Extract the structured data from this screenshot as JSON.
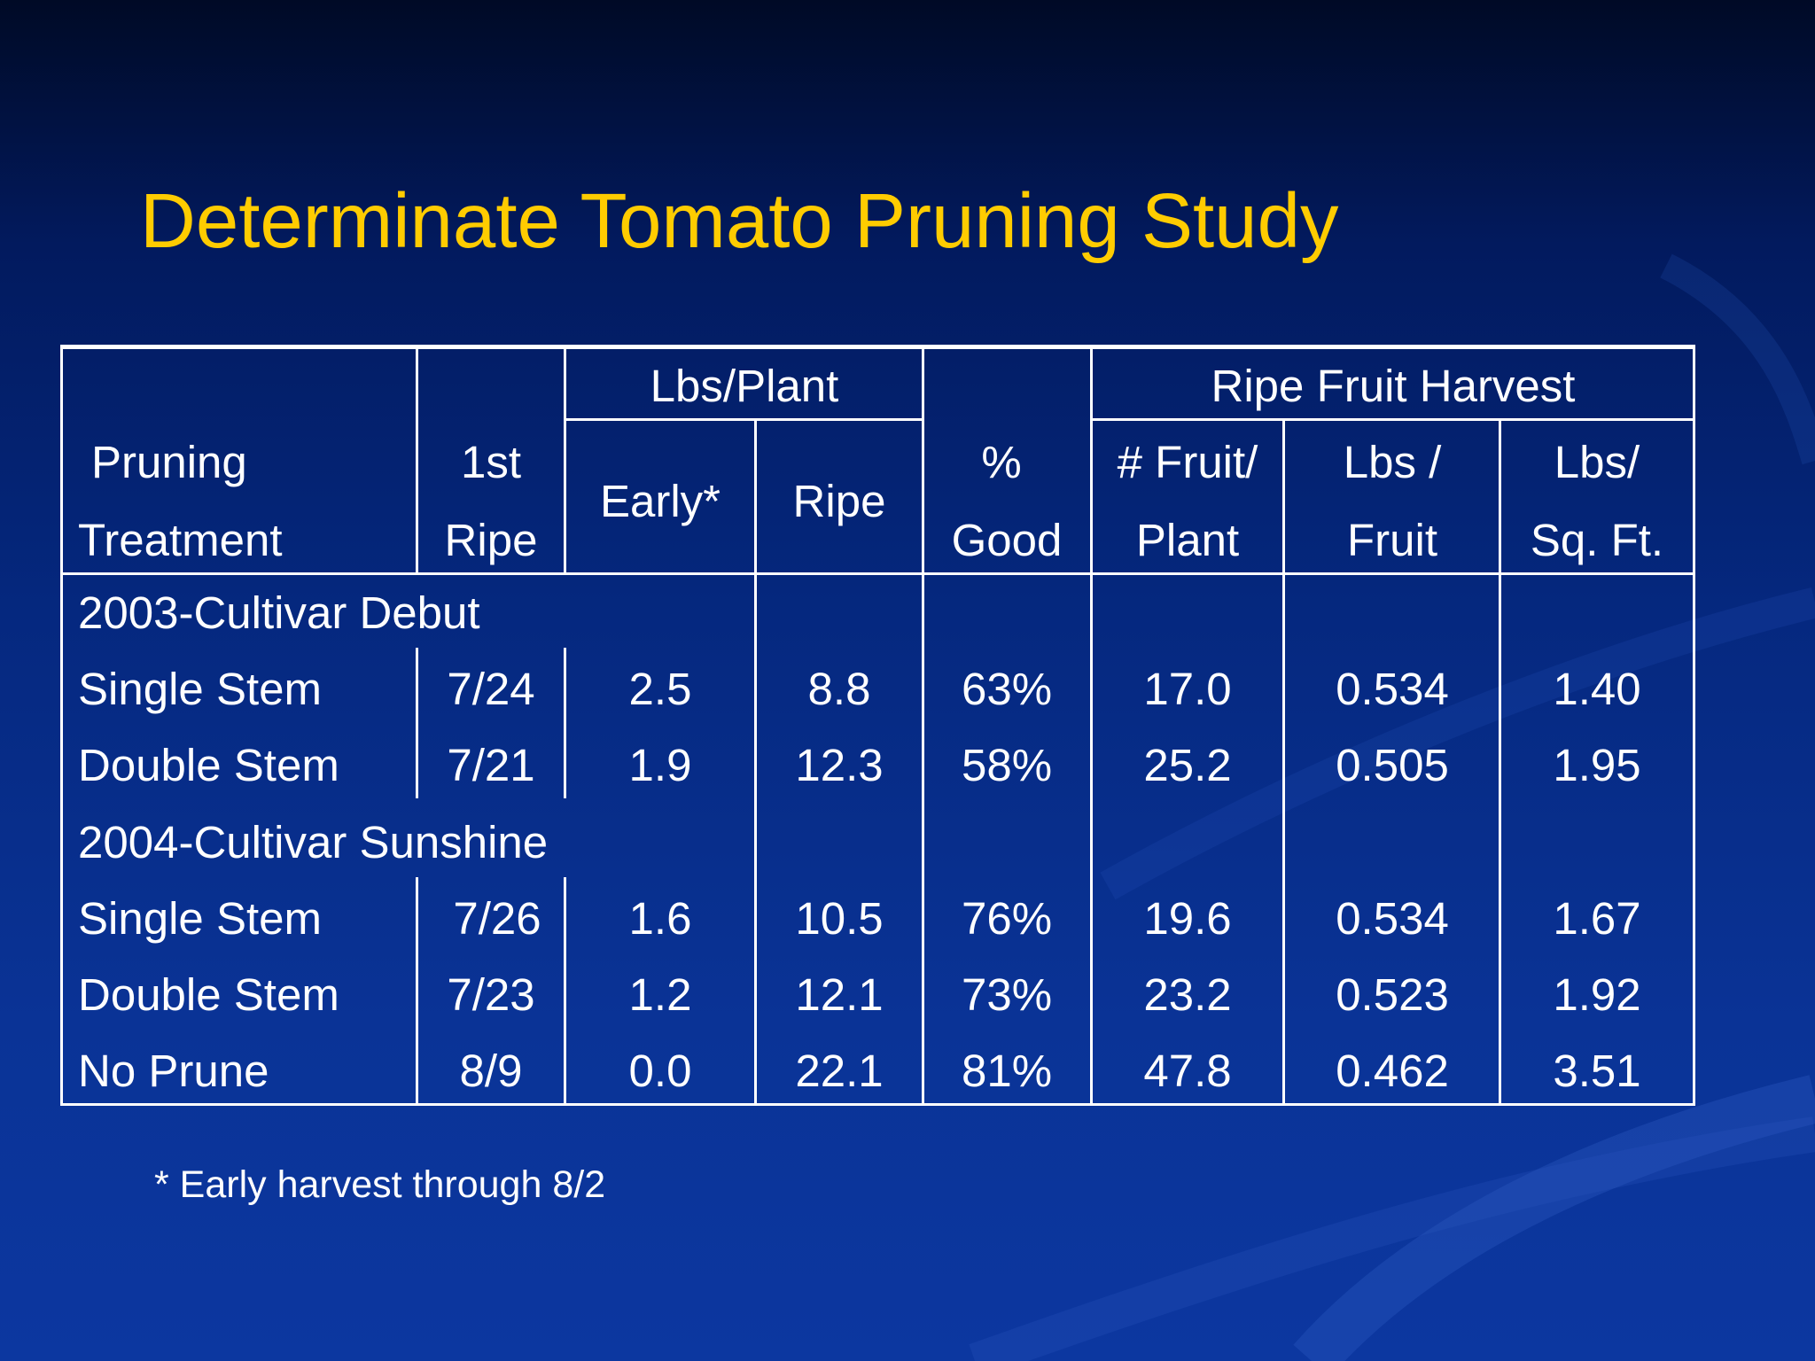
{
  "slide": {
    "title": "Determinate Tomato Pruning Study",
    "footnote": "* Early harvest through 8/2"
  },
  "table": {
    "group_headers": {
      "lbs_plant": "Lbs/Plant",
      "ripe_fruit_harvest": "Ripe Fruit Harvest"
    },
    "columns": {
      "treatment": [
        "Pruning",
        "Treatment"
      ],
      "first_ripe": [
        "1st",
        "Ripe"
      ],
      "early": "Early*",
      "ripe": "Ripe",
      "pct_good": [
        "%",
        "Good"
      ],
      "fruit_per_plant": [
        "# Fruit/",
        "Plant"
      ],
      "lbs_per_fruit": [
        "Lbs /",
        "Fruit"
      ],
      "lbs_per_sqft": [
        "Lbs/",
        "Sq. Ft."
      ]
    },
    "groups": [
      {
        "label": "2003-Cultivar Debut",
        "rows": [
          {
            "treatment": "Single Stem",
            "first_ripe": "7/24",
            "early": "2.5",
            "ripe": "8.8",
            "pct_good": "63%",
            "fruit_per_plant": "17.0",
            "lbs_per_fruit": "0.534",
            "lbs_per_sqft": "1.40"
          },
          {
            "treatment": "Double Stem",
            "first_ripe": "7/21",
            "early": "1.9",
            "ripe": "12.3",
            "pct_good": "58%",
            "fruit_per_plant": "25.2",
            "lbs_per_fruit": "0.505",
            "lbs_per_sqft": "1.95"
          }
        ]
      },
      {
        "label": "2004-Cultivar Sunshine",
        "rows": [
          {
            "treatment": "Single Stem",
            "first_ripe": "7/26",
            "early": "1.6",
            "ripe": "10.5",
            "pct_good": "76%",
            "fruit_per_plant": "19.6",
            "lbs_per_fruit": "0.534",
            "lbs_per_sqft": "1.67"
          },
          {
            "treatment": "Double Stem",
            "first_ripe": "7/23",
            "early": "1.2",
            "ripe": "12.1",
            "pct_good": "73%",
            "fruit_per_plant": "23.2",
            "lbs_per_fruit": "0.523",
            "lbs_per_sqft": "1.92"
          },
          {
            "treatment": "No Prune",
            "first_ripe": "8/9",
            "early": "0.0",
            "ripe": "22.1",
            "pct_good": "81%",
            "fruit_per_plant": "47.8",
            "lbs_per_fruit": "0.462",
            "lbs_per_sqft": "3.51"
          }
        ]
      }
    ]
  }
}
